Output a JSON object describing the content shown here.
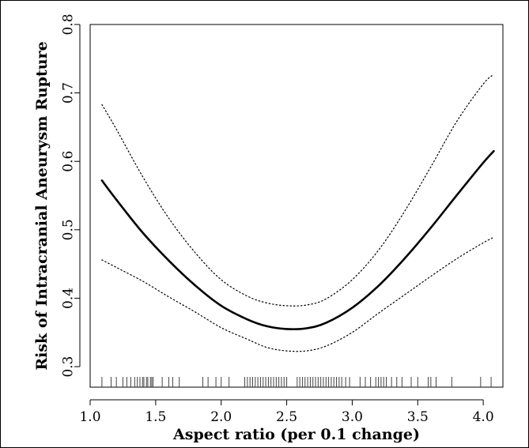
{
  "chart_data": {
    "type": "line",
    "title": "",
    "xlabel": "Aspect ratio (per 0.1 change)",
    "ylabel": "Risk of Intracranial Aneurysm Rupture",
    "xlim": [
      1.0,
      4.15
    ],
    "ylim": [
      0.27,
      0.8
    ],
    "xticks": [
      1.0,
      1.5,
      2.0,
      2.5,
      3.0,
      3.5,
      4.0
    ],
    "xtick_labels": [
      "1.0",
      "1.5",
      "2.0",
      "2.5",
      "3.0",
      "3.5",
      "4.0"
    ],
    "yticks": [
      0.3,
      0.4,
      0.5,
      0.6,
      0.7,
      0.8
    ],
    "ytick_labels": [
      "0.3",
      "0.4",
      "0.5",
      "0.6",
      "0.7",
      "0.8"
    ],
    "grid": false,
    "series": [
      {
        "style": "solid",
        "x": [
          1.09,
          1.2,
          1.4,
          1.6,
          1.8,
          2.0,
          2.2,
          2.35,
          2.5,
          2.65,
          2.8,
          3.0,
          3.2,
          3.4,
          3.6,
          3.8,
          4.0,
          4.08
        ],
        "y": [
          0.572,
          0.544,
          0.496,
          0.455,
          0.419,
          0.389,
          0.369,
          0.359,
          0.355,
          0.356,
          0.364,
          0.386,
          0.418,
          0.458,
          0.503,
          0.551,
          0.598,
          0.615
        ]
      },
      {
        "style": "dotted",
        "x": [
          1.09,
          1.2,
          1.4,
          1.6,
          1.8,
          2.0,
          2.2,
          2.35,
          2.5,
          2.65,
          2.8,
          3.0,
          3.2,
          3.4,
          3.6,
          3.8,
          4.0,
          4.08
        ],
        "y": [
          0.683,
          0.647,
          0.578,
          0.517,
          0.467,
          0.427,
          0.403,
          0.393,
          0.389,
          0.39,
          0.399,
          0.427,
          0.47,
          0.527,
          0.592,
          0.659,
          0.713,
          0.727
        ]
      },
      {
        "style": "dotted",
        "x": [
          1.09,
          1.2,
          1.4,
          1.6,
          1.8,
          2.0,
          2.2,
          2.35,
          2.5,
          2.65,
          2.8,
          3.0,
          3.2,
          3.4,
          3.6,
          3.8,
          4.0,
          4.08
        ],
        "y": [
          0.456,
          0.445,
          0.425,
          0.402,
          0.38,
          0.357,
          0.34,
          0.328,
          0.323,
          0.323,
          0.33,
          0.35,
          0.378,
          0.405,
          0.432,
          0.458,
          0.481,
          0.489
        ]
      }
    ],
    "rug": [
      1.09,
      1.16,
      1.2,
      1.25,
      1.28,
      1.31,
      1.34,
      1.36,
      1.38,
      1.4,
      1.41,
      1.43,
      1.44,
      1.46,
      1.47,
      1.48,
      1.55,
      1.6,
      1.63,
      1.68,
      1.86,
      1.9,
      1.96,
      2.0,
      2.06,
      2.18,
      2.2,
      2.22,
      2.24,
      2.26,
      2.28,
      2.3,
      2.32,
      2.34,
      2.36,
      2.38,
      2.4,
      2.42,
      2.44,
      2.46,
      2.48,
      2.5,
      2.58,
      2.6,
      2.62,
      2.64,
      2.66,
      2.68,
      2.7,
      2.72,
      2.74,
      2.76,
      2.78,
      2.8,
      2.82,
      2.84,
      2.86,
      2.88,
      2.9,
      2.92,
      2.95,
      2.98,
      3.06,
      3.1,
      3.14,
      3.18,
      3.2,
      3.22,
      3.24,
      3.26,
      3.3,
      3.34,
      3.38,
      3.45,
      3.5,
      3.58,
      3.6,
      3.64,
      3.76,
      3.98,
      4.06
    ]
  }
}
